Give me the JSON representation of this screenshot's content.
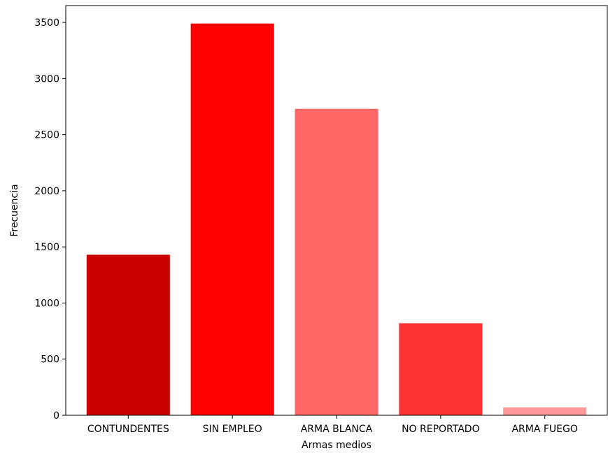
{
  "chart_data": {
    "type": "bar",
    "categories": [
      "CONTUNDENTES",
      "SIN EMPLEO",
      "ARMA BLANCA",
      "NO REPORTADO",
      "ARMA FUEGO"
    ],
    "values": [
      1430,
      3490,
      2730,
      820,
      70
    ],
    "colors": [
      "#cc0000",
      "#ff0000",
      "#ff6666",
      "#ff3333",
      "#ff9999"
    ],
    "xlabel": "Armas medios",
    "ylabel": "Frecuencia",
    "ylim": [
      0,
      3650
    ],
    "yticks": [
      0,
      500,
      1000,
      1500,
      2000,
      2500,
      3000,
      3500
    ],
    "grid": false
  }
}
